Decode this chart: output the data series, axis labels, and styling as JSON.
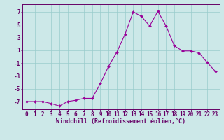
{
  "x": [
    0,
    1,
    2,
    3,
    4,
    5,
    6,
    7,
    8,
    9,
    10,
    11,
    12,
    13,
    14,
    15,
    16,
    17,
    18,
    19,
    20,
    21,
    22,
    23
  ],
  "y": [
    -7,
    -7,
    -7,
    -7.3,
    -7.7,
    -7,
    -6.8,
    -6.5,
    -6.5,
    -4.2,
    -1.5,
    0.7,
    3.5,
    7.0,
    6.3,
    4.8,
    7.1,
    4.8,
    1.7,
    0.9,
    0.9,
    0.6,
    -0.9,
    -2.3
  ],
  "line_color": "#990099",
  "marker_color": "#990099",
  "bg_color": "#cce8e8",
  "grid_color": "#99cccc",
  "axis_color": "#660066",
  "tick_color": "#660066",
  "xlabel": "Windchill (Refroidissement éolien,°C)",
  "xlim": [
    -0.5,
    23.5
  ],
  "ylim": [
    -8.2,
    8.2
  ],
  "yticks": [
    -7,
    -5,
    -3,
    -1,
    1,
    3,
    5,
    7
  ],
  "xticks": [
    0,
    1,
    2,
    3,
    4,
    5,
    6,
    7,
    8,
    9,
    10,
    11,
    12,
    13,
    14,
    15,
    16,
    17,
    18,
    19,
    20,
    21,
    22,
    23
  ],
  "tick_fontsize": 5.5,
  "label_fontsize": 6.0
}
